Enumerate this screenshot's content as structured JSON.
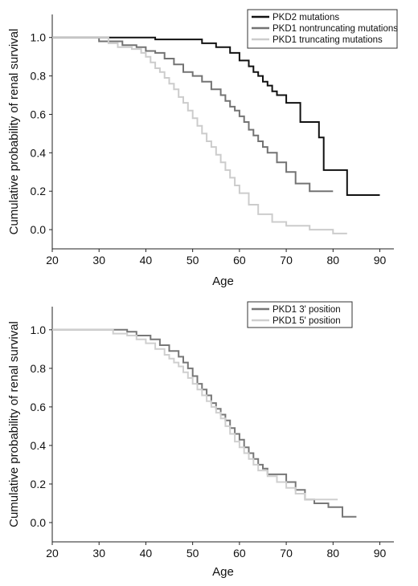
{
  "chart_data": [
    {
      "type": "line",
      "xlabel": "Age",
      "ylabel": "Cumulative probability of renal survival",
      "xlim": [
        20,
        93
      ],
      "ylim": [
        -0.1,
        1.12
      ],
      "xticks": [
        20,
        30,
        40,
        50,
        60,
        70,
        80,
        90
      ],
      "yticks": [
        0.0,
        0.2,
        0.4,
        0.6,
        0.8,
        1.0
      ],
      "ytick_labels": [
        "0.0",
        "0.2",
        "0.4",
        "0.6",
        "0.8",
        "1.0"
      ],
      "grid": false,
      "legend_position": "top-right",
      "series": [
        {
          "name": "PKD2 mutations",
          "color": "#111111",
          "x": [
            20,
            33,
            39,
            42,
            50,
            52,
            55,
            58,
            60,
            62,
            63,
            64,
            65,
            66,
            67,
            68,
            70,
            72,
            73,
            76,
            77,
            78,
            83,
            90
          ],
          "y": [
            1.0,
            1.0,
            1.0,
            0.99,
            0.99,
            0.97,
            0.95,
            0.92,
            0.88,
            0.85,
            0.82,
            0.8,
            0.77,
            0.75,
            0.72,
            0.7,
            0.66,
            0.66,
            0.56,
            0.56,
            0.48,
            0.31,
            0.18,
            0.18
          ]
        },
        {
          "name": "PKD1 nontruncating mutations",
          "color": "#737373",
          "x": [
            20,
            30,
            35,
            38,
            40,
            42,
            44,
            46,
            48,
            50,
            52,
            54,
            56,
            57,
            58,
            59,
            60,
            61,
            62,
            63,
            64,
            65,
            66,
            68,
            70,
            72,
            75,
            80
          ],
          "y": [
            1.0,
            0.98,
            0.96,
            0.95,
            0.93,
            0.92,
            0.89,
            0.86,
            0.82,
            0.8,
            0.77,
            0.73,
            0.7,
            0.67,
            0.64,
            0.62,
            0.59,
            0.56,
            0.52,
            0.49,
            0.46,
            0.43,
            0.4,
            0.35,
            0.3,
            0.24,
            0.2,
            0.2
          ]
        },
        {
          "name": "PKD1 truncating mutations",
          "color": "#cccccc",
          "x": [
            20,
            32,
            34,
            37,
            39,
            40,
            41,
            42,
            43,
            44,
            45,
            46,
            47,
            48,
            49,
            50,
            51,
            52,
            53,
            54,
            55,
            56,
            57,
            58,
            59,
            60,
            62,
            64,
            67,
            70,
            75,
            80,
            83
          ],
          "y": [
            1.0,
            0.97,
            0.95,
            0.94,
            0.92,
            0.9,
            0.87,
            0.84,
            0.82,
            0.79,
            0.76,
            0.73,
            0.69,
            0.66,
            0.62,
            0.58,
            0.54,
            0.5,
            0.46,
            0.43,
            0.39,
            0.35,
            0.31,
            0.27,
            0.23,
            0.19,
            0.13,
            0.08,
            0.04,
            0.02,
            0.0,
            -0.02,
            -0.02
          ]
        }
      ]
    },
    {
      "type": "line",
      "xlabel": "Age",
      "ylabel": "Cumulative probability of renal survival",
      "xlim": [
        20,
        93
      ],
      "ylim": [
        -0.1,
        1.12
      ],
      "xticks": [
        20,
        30,
        40,
        50,
        60,
        70,
        80,
        90
      ],
      "yticks": [
        0.0,
        0.2,
        0.4,
        0.6,
        0.8,
        1.0
      ],
      "ytick_labels": [
        "0.0",
        "0.2",
        "0.4",
        "0.6",
        "0.8",
        "1.0"
      ],
      "grid": false,
      "legend_position": "top-right",
      "series": [
        {
          "name": "PKD1 3' position",
          "color": "#777777",
          "x": [
            20,
            36,
            38,
            41,
            43,
            45,
            47,
            48,
            49,
            50,
            51,
            52,
            53,
            54,
            55,
            56,
            57,
            58,
            59,
            60,
            61,
            62,
            63,
            64,
            65,
            66,
            67,
            68,
            70,
            72,
            74,
            76,
            79,
            82,
            85
          ],
          "y": [
            1.0,
            0.99,
            0.97,
            0.95,
            0.92,
            0.89,
            0.86,
            0.83,
            0.8,
            0.76,
            0.72,
            0.69,
            0.66,
            0.62,
            0.59,
            0.56,
            0.53,
            0.49,
            0.46,
            0.43,
            0.39,
            0.36,
            0.33,
            0.3,
            0.28,
            0.25,
            0.25,
            0.25,
            0.21,
            0.17,
            0.12,
            0.1,
            0.08,
            0.03,
            0.03
          ]
        },
        {
          "name": "PKD1 5' position",
          "color": "#cfcfcf",
          "x": [
            20,
            33,
            36,
            38,
            40,
            42,
            44,
            45,
            46,
            47,
            48,
            49,
            50,
            51,
            52,
            53,
            54,
            55,
            56,
            57,
            58,
            59,
            60,
            61,
            62,
            63,
            64,
            66,
            68,
            70,
            72,
            74,
            76,
            78,
            81
          ],
          "y": [
            1.0,
            0.98,
            0.97,
            0.95,
            0.93,
            0.9,
            0.87,
            0.85,
            0.83,
            0.81,
            0.78,
            0.75,
            0.72,
            0.69,
            0.66,
            0.63,
            0.6,
            0.57,
            0.54,
            0.5,
            0.46,
            0.42,
            0.39,
            0.36,
            0.33,
            0.3,
            0.27,
            0.24,
            0.21,
            0.18,
            0.15,
            0.12,
            0.12,
            0.12,
            0.12
          ]
        }
      ]
    }
  ]
}
